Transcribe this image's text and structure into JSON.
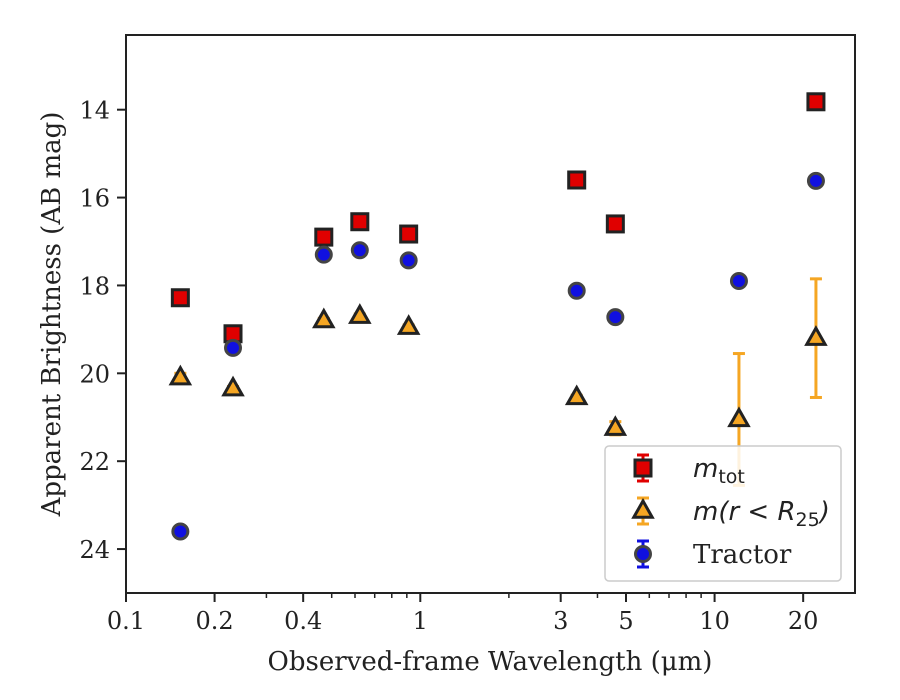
{
  "chart_data": {
    "type": "scatter",
    "xlabel": "Observed-frame Wavelength (μm)",
    "ylabel": "Apparent Brightness (AB mag)",
    "xscale": "log",
    "xlim": [
      0.1,
      30
    ],
    "ylim": [
      25,
      12.3
    ],
    "y_inverted": true,
    "x_ticks": [
      {
        "value": 0.1,
        "label": "0.1"
      },
      {
        "value": 0.2,
        "label": "0.2"
      },
      {
        "value": 0.4,
        "label": "0.4"
      },
      {
        "value": 1,
        "label": "1"
      },
      {
        "value": 3,
        "label": "3"
      },
      {
        "value": 5,
        "label": "5"
      },
      {
        "value": 10,
        "label": "10"
      },
      {
        "value": 20,
        "label": "20"
      }
    ],
    "y_ticks": [
      {
        "value": 14,
        "label": "14"
      },
      {
        "value": 16,
        "label": "16"
      },
      {
        "value": 18,
        "label": "18"
      },
      {
        "value": 20,
        "label": "20"
      },
      {
        "value": 22,
        "label": "22"
      },
      {
        "value": 24,
        "label": "24"
      }
    ],
    "grid": false,
    "legend_position": "lower-right",
    "series": [
      {
        "name": "m_tot",
        "legend_main": "m",
        "legend_sub": "tot",
        "legend_rest": "",
        "marker": "square",
        "color": "#e00000",
        "edge_color": "#222222",
        "errorbar_color": "#e00000",
        "points": [
          {
            "x": 0.153,
            "y": 18.28,
            "err": 0.05
          },
          {
            "x": 0.231,
            "y": 19.1,
            "err": 0.05
          },
          {
            "x": 0.47,
            "y": 16.9,
            "err": 0.05
          },
          {
            "x": 0.623,
            "y": 16.55,
            "err": 0.05
          },
          {
            "x": 0.913,
            "y": 16.83,
            "err": 0.05
          },
          {
            "x": 3.4,
            "y": 15.6,
            "err": 0.05
          },
          {
            "x": 4.6,
            "y": 16.6,
            "err": 0.05
          },
          {
            "x": 22.1,
            "y": 13.82,
            "err": 0.05
          }
        ]
      },
      {
        "name": "m(r < R_25)",
        "legend_main": "m(r < R",
        "legend_sub": "25",
        "legend_rest": ")",
        "marker": "triangle",
        "color": "#f5a623",
        "edge_color": "#222222",
        "errorbar_color": "#f5a623",
        "points": [
          {
            "x": 0.153,
            "y": 20.1,
            "err": 0.1
          },
          {
            "x": 0.231,
            "y": 20.35,
            "err": 0.05
          },
          {
            "x": 0.47,
            "y": 18.8,
            "err": 0.05
          },
          {
            "x": 0.623,
            "y": 18.7,
            "err": 0.05
          },
          {
            "x": 0.913,
            "y": 18.95,
            "err": 0.05
          },
          {
            "x": 3.4,
            "y": 20.55,
            "err": 0.05
          },
          {
            "x": 4.6,
            "y": 21.25,
            "err": 0.15
          },
          {
            "x": 12.1,
            "y": 21.05,
            "err": 1.5
          },
          {
            "x": 22.1,
            "y": 19.2,
            "err": 1.35
          }
        ]
      },
      {
        "name": "Tractor",
        "legend_main": "Tractor",
        "legend_sub": "",
        "legend_rest": "",
        "marker": "circle",
        "color": "#1010e0",
        "edge_color": "#444444",
        "errorbar_color": "#1010e0",
        "points": [
          {
            "x": 0.153,
            "y": 23.6,
            "err": 0.05
          },
          {
            "x": 0.231,
            "y": 19.42,
            "err": 0.05
          },
          {
            "x": 0.47,
            "y": 17.3,
            "err": 0.05
          },
          {
            "x": 0.623,
            "y": 17.2,
            "err": 0.05
          },
          {
            "x": 0.913,
            "y": 17.43,
            "err": 0.05
          },
          {
            "x": 3.4,
            "y": 18.12,
            "err": 0.05
          },
          {
            "x": 4.6,
            "y": 18.72,
            "err": 0.05
          },
          {
            "x": 12.1,
            "y": 17.9,
            "err": 0.05
          },
          {
            "x": 22.1,
            "y": 15.62,
            "err": 0.05
          }
        ]
      }
    ]
  }
}
